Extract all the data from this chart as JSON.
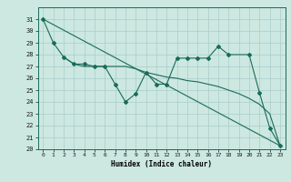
{
  "xlabel": "Humidex (Indice chaleur)",
  "background_color": "#cce8e0",
  "grid_color": "#aacccc",
  "line_color": "#1a6b5a",
  "ylim": [
    20,
    32
  ],
  "xlim": [
    -0.5,
    23.5
  ],
  "yticks": [
    20,
    21,
    22,
    23,
    24,
    25,
    26,
    27,
    28,
    29,
    30,
    31
  ],
  "xticks": [
    0,
    1,
    2,
    3,
    4,
    5,
    6,
    7,
    8,
    9,
    10,
    11,
    12,
    13,
    14,
    15,
    16,
    17,
    18,
    19,
    20,
    21,
    22,
    23
  ],
  "line1_x": [
    0,
    1,
    2,
    3,
    4,
    5,
    6,
    7,
    8,
    9,
    10,
    11,
    12,
    13,
    14,
    15,
    16,
    17,
    18,
    20,
    21,
    22,
    23
  ],
  "line1_y": [
    31,
    29,
    27.8,
    27.2,
    27.2,
    27.0,
    27.0,
    25.5,
    24.0,
    24.7,
    26.5,
    25.5,
    25.5,
    27.7,
    27.7,
    27.7,
    27.7,
    28.7,
    28.0,
    28.0,
    24.8,
    21.8,
    20.3
  ],
  "line2_x": [
    0,
    23
  ],
  "line2_y": [
    31,
    20.3
  ],
  "line3_x": [
    2,
    3,
    4,
    5,
    6,
    7,
    8,
    9,
    10,
    11,
    12,
    13,
    14,
    15,
    16,
    17,
    18,
    19,
    20,
    21,
    22,
    23
  ],
  "line3_y": [
    27.8,
    27.2,
    27.0,
    27.0,
    27.0,
    27.0,
    27.0,
    26.8,
    26.5,
    26.3,
    26.1,
    26.0,
    25.8,
    25.7,
    25.5,
    25.3,
    25.0,
    24.7,
    24.3,
    23.8,
    23.0,
    20.3
  ]
}
